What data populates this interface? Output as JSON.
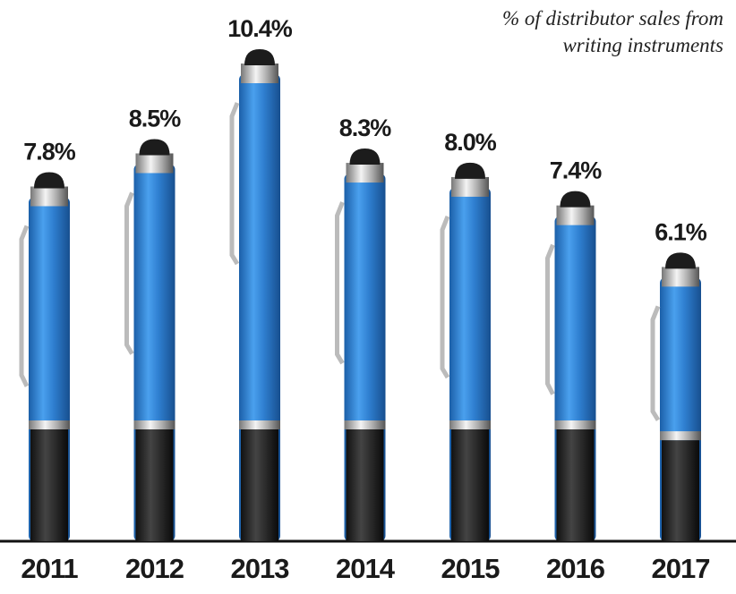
{
  "chart_data": {
    "type": "bar",
    "title": "% of distributor sales from writing instruments",
    "categories": [
      "2011",
      "2012",
      "2013",
      "2014",
      "2015",
      "2016",
      "2017"
    ],
    "values": [
      7.8,
      8.5,
      10.4,
      8.3,
      8.0,
      7.4,
      6.1
    ],
    "value_labels": [
      "7.8%",
      "8.5%",
      "10.4%",
      "8.3%",
      "8.0%",
      "7.4%",
      "6.1%"
    ],
    "color": "#2f7fd0"
  }
}
